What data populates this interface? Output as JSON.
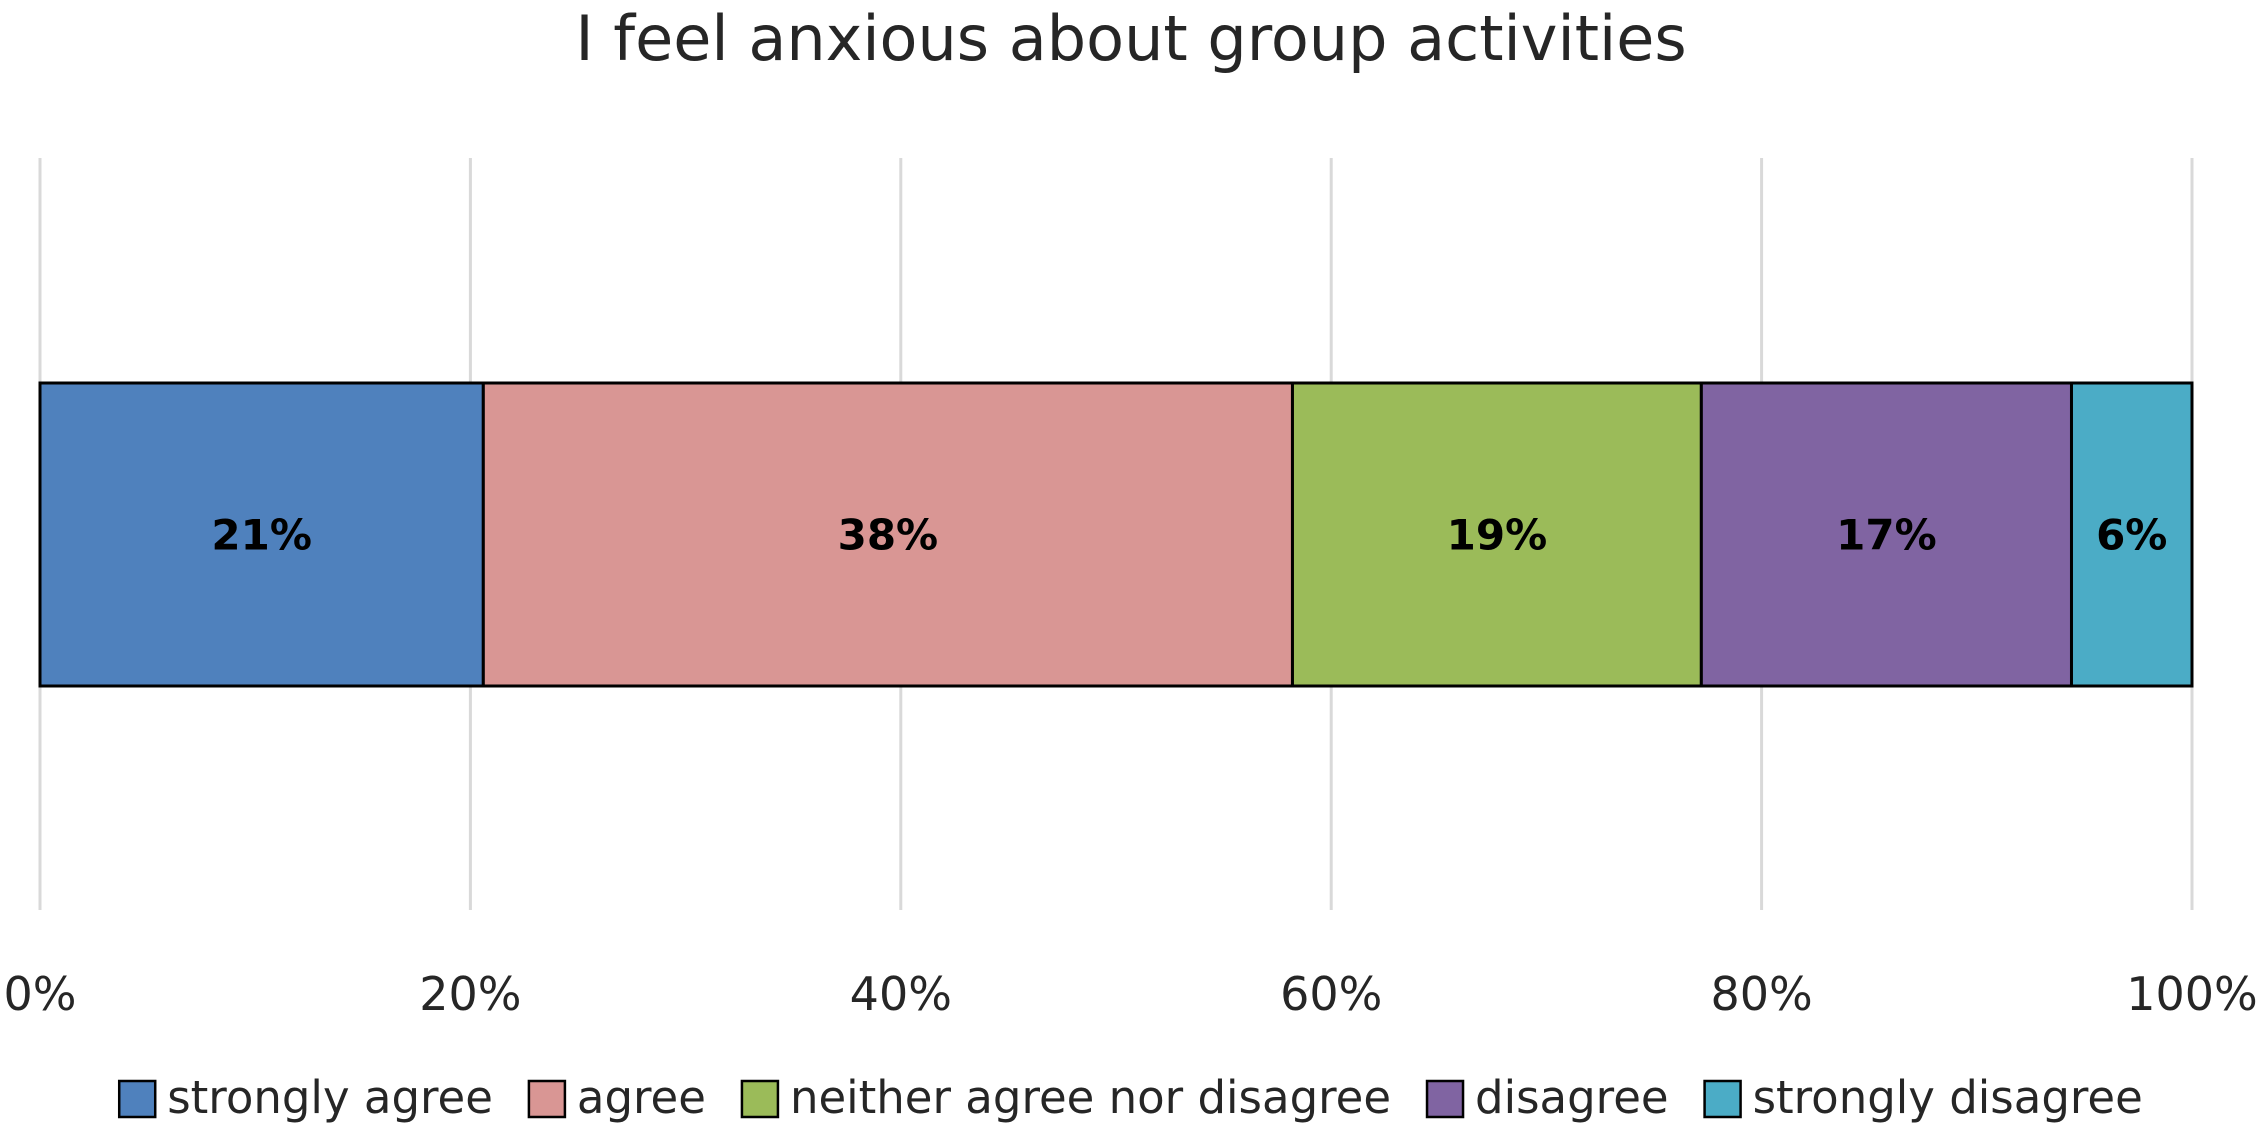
{
  "chart_data": {
    "type": "bar",
    "orientation": "horizontal",
    "stacked": true,
    "normalized": true,
    "title": "I feel anxious about group activities",
    "categories": [
      ""
    ],
    "series": [
      {
        "name": "strongly agree",
        "values": [
          20.6
        ],
        "label": "21%",
        "color": "#4f81bd"
      },
      {
        "name": "agree",
        "values": [
          37.6
        ],
        "label": "38%",
        "color": "#d99694"
      },
      {
        "name": "neither agree nor disagree",
        "values": [
          19.0
        ],
        "label": "19%",
        "color": "#9bbb59"
      },
      {
        "name": "disagree",
        "values": [
          17.2
        ],
        "label": "17%",
        "color": "#8064a2"
      },
      {
        "name": "strongly disagree",
        "values": [
          5.6
        ],
        "label": "6%",
        "color": "#4bacc6"
      }
    ],
    "xlim": [
      0,
      100
    ],
    "xticks": [
      {
        "value": 0,
        "label": "0%"
      },
      {
        "value": 20,
        "label": "20%"
      },
      {
        "value": 40,
        "label": "40%"
      },
      {
        "value": 60,
        "label": "60%"
      },
      {
        "value": 80,
        "label": "80%"
      },
      {
        "value": 100,
        "label": "100%"
      }
    ],
    "xlabel": "",
    "ylabel": "",
    "grid": "vertical",
    "legend_position": "bottom"
  }
}
